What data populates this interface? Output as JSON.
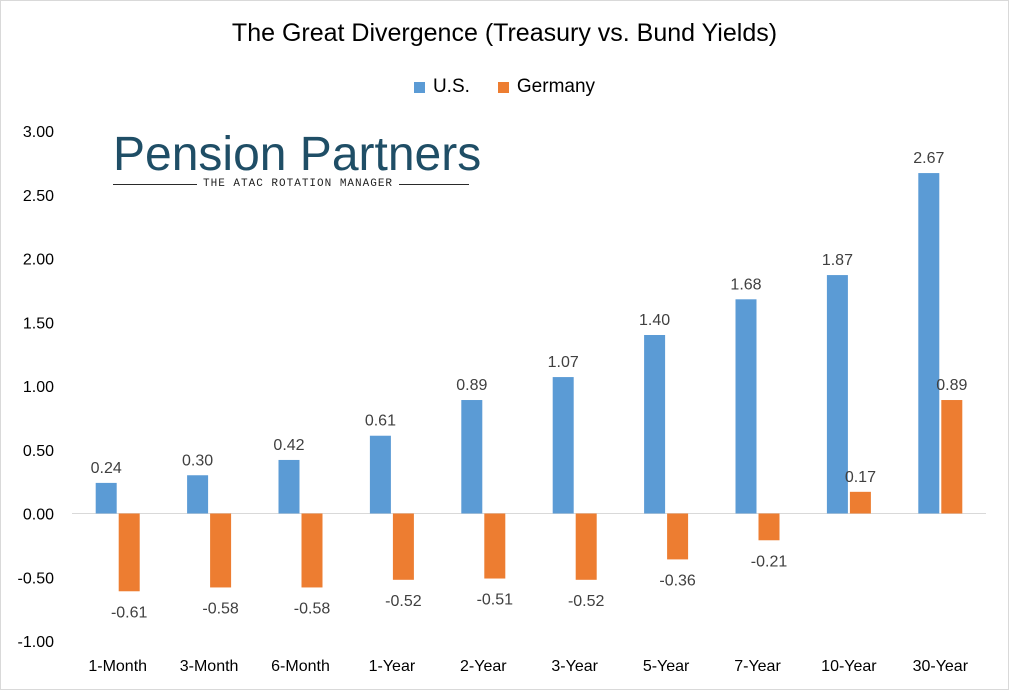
{
  "chart_data": {
    "type": "bar",
    "title": "The Great Divergence (Treasury vs. Bund Yields)",
    "xlabel": "",
    "ylabel": "",
    "ylim": [
      -1.0,
      3.0
    ],
    "yticks": [
      "3.00",
      "2.50",
      "2.00",
      "1.50",
      "1.00",
      "0.50",
      "0.00",
      "-0.50",
      "-1.00"
    ],
    "ytick_values": [
      3.0,
      2.5,
      2.0,
      1.5,
      1.0,
      0.5,
      0.0,
      -0.5,
      -1.0
    ],
    "legend_position": "top-center",
    "grid": false,
    "categories": [
      "1-Month",
      "3-Month",
      "6-Month",
      "1-Year",
      "2-Year",
      "3-Year",
      "5-Year",
      "7-Year",
      "10-Year",
      "30-Year"
    ],
    "series": [
      {
        "name": "U.S.",
        "color": "#5b9bd5",
        "values": [
          0.24,
          0.3,
          0.42,
          0.61,
          0.89,
          1.07,
          1.4,
          1.68,
          1.87,
          2.67
        ],
        "labels": [
          "0.24",
          "0.30",
          "0.42",
          "0.61",
          "0.89",
          "1.07",
          "1.40",
          "1.68",
          "1.87",
          "2.67"
        ]
      },
      {
        "name": "Germany",
        "color": "#ed7d31",
        "values": [
          -0.61,
          -0.58,
          -0.58,
          -0.52,
          -0.51,
          -0.52,
          -0.36,
          -0.21,
          0.17,
          0.89
        ],
        "labels": [
          "-0.61",
          "-0.58",
          "-0.58",
          "-0.52",
          "-0.51",
          "-0.52",
          "-0.36",
          "-0.21",
          "0.17",
          "0.89"
        ]
      }
    ]
  },
  "logo": {
    "name": "Pension Partners",
    "tagline": "THE ATAC ROTATION MANAGER"
  }
}
